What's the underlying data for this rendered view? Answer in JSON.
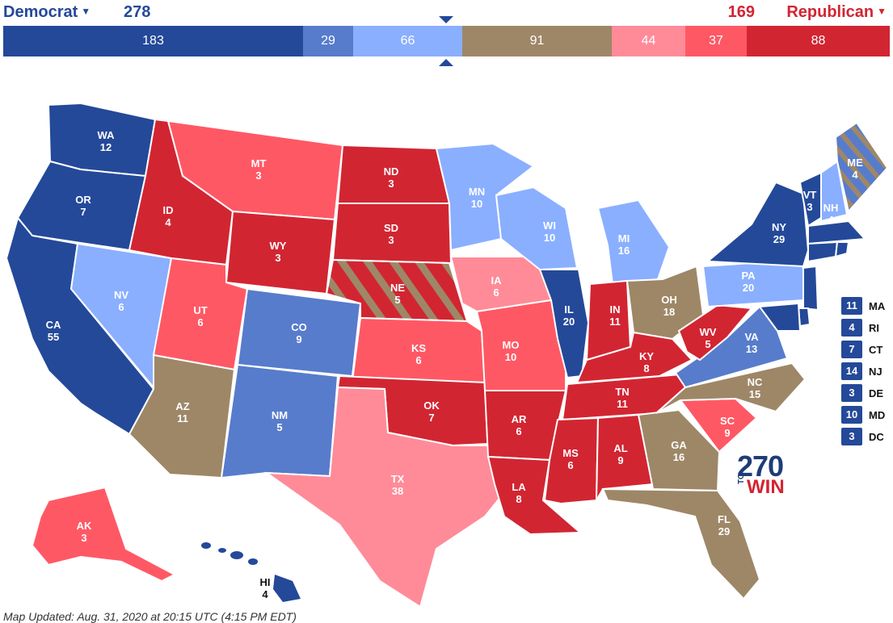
{
  "header": {
    "dem_label": "Democrat",
    "dem_total": "278",
    "rep_total": "169",
    "rep_label": "Republican"
  },
  "bar": [
    {
      "name": "safe-dem",
      "value": "183",
      "color": "#244999"
    },
    {
      "name": "likely-dem",
      "value": "29",
      "color": "#577ccc"
    },
    {
      "name": "leans-dem",
      "value": "66",
      "color": "#8aafff"
    },
    {
      "name": "tossup",
      "value": "91",
      "color": "#9e8767"
    },
    {
      "name": "leans-rep",
      "value": "44",
      "color": "#ff8b98"
    },
    {
      "name": "likely-rep",
      "value": "37",
      "color": "#ff5865"
    },
    {
      "name": "safe-rep",
      "value": "88",
      "color": "#d22532"
    }
  ],
  "colors": {
    "safe_dem": "#244999",
    "likely_dem": "#577ccc",
    "leans_dem": "#8aafff",
    "tossup": "#9e8767",
    "leans_rep": "#ff8b98",
    "likely_rep": "#ff5865",
    "safe_rep": "#d22532"
  },
  "states": {
    "WA": {
      "abbr": "WA",
      "ev": "12"
    },
    "OR": {
      "abbr": "OR",
      "ev": "7"
    },
    "CA": {
      "abbr": "CA",
      "ev": "55"
    },
    "NV": {
      "abbr": "NV",
      "ev": "6"
    },
    "ID": {
      "abbr": "ID",
      "ev": "4"
    },
    "MT": {
      "abbr": "MT",
      "ev": "3"
    },
    "WY": {
      "abbr": "WY",
      "ev": "3"
    },
    "UT": {
      "abbr": "UT",
      "ev": "6"
    },
    "AZ": {
      "abbr": "AZ",
      "ev": "11"
    },
    "CO": {
      "abbr": "CO",
      "ev": "9"
    },
    "NM": {
      "abbr": "NM",
      "ev": "5"
    },
    "ND": {
      "abbr": "ND",
      "ev": "3"
    },
    "SD": {
      "abbr": "SD",
      "ev": "3"
    },
    "NE": {
      "abbr": "NE",
      "ev": "5"
    },
    "KS": {
      "abbr": "KS",
      "ev": "6"
    },
    "OK": {
      "abbr": "OK",
      "ev": "7"
    },
    "TX": {
      "abbr": "TX",
      "ev": "38"
    },
    "MN": {
      "abbr": "MN",
      "ev": "10"
    },
    "IA": {
      "abbr": "IA",
      "ev": "6"
    },
    "MO": {
      "abbr": "MO",
      "ev": "10"
    },
    "AR": {
      "abbr": "AR",
      "ev": "6"
    },
    "LA": {
      "abbr": "LA",
      "ev": "8"
    },
    "WI": {
      "abbr": "WI",
      "ev": "10"
    },
    "IL": {
      "abbr": "IL",
      "ev": "20"
    },
    "MI": {
      "abbr": "MI",
      "ev": "16"
    },
    "IN": {
      "abbr": "IN",
      "ev": "11"
    },
    "OH": {
      "abbr": "OH",
      "ev": "18"
    },
    "KY": {
      "abbr": "KY",
      "ev": "8"
    },
    "TN": {
      "abbr": "TN",
      "ev": "11"
    },
    "MS": {
      "abbr": "MS",
      "ev": "6"
    },
    "AL": {
      "abbr": "AL",
      "ev": "9"
    },
    "GA": {
      "abbr": "GA",
      "ev": "16"
    },
    "FL": {
      "abbr": "FL",
      "ev": "29"
    },
    "SC": {
      "abbr": "SC",
      "ev": "9"
    },
    "NC": {
      "abbr": "NC",
      "ev": "15"
    },
    "VA": {
      "abbr": "VA",
      "ev": "13"
    },
    "WV": {
      "abbr": "WV",
      "ev": "5"
    },
    "PA": {
      "abbr": "PA",
      "ev": "20"
    },
    "NY": {
      "abbr": "NY",
      "ev": "29"
    },
    "VT": {
      "abbr": "VT",
      "ev": "3"
    },
    "NH": {
      "abbr": "NH",
      "ev": "4"
    },
    "ME": {
      "abbr": "ME",
      "ev": "4"
    },
    "AK": {
      "abbr": "AK",
      "ev": "3"
    },
    "HI": {
      "abbr": "HI",
      "ev": "4"
    }
  },
  "small_states": [
    {
      "ev": "11",
      "abbr": "MA"
    },
    {
      "ev": "4",
      "abbr": "RI"
    },
    {
      "ev": "7",
      "abbr": "CT"
    },
    {
      "ev": "14",
      "abbr": "NJ"
    },
    {
      "ev": "3",
      "abbr": "DE"
    },
    {
      "ev": "10",
      "abbr": "MD"
    },
    {
      "ev": "3",
      "abbr": "DC"
    }
  ],
  "logo": {
    "num": "270",
    "to": "TO",
    "win": "WIN"
  },
  "footer": {
    "updated": "Map Updated: Aug. 31, 2020 at 20:15 UTC (4:15 PM EDT)"
  }
}
